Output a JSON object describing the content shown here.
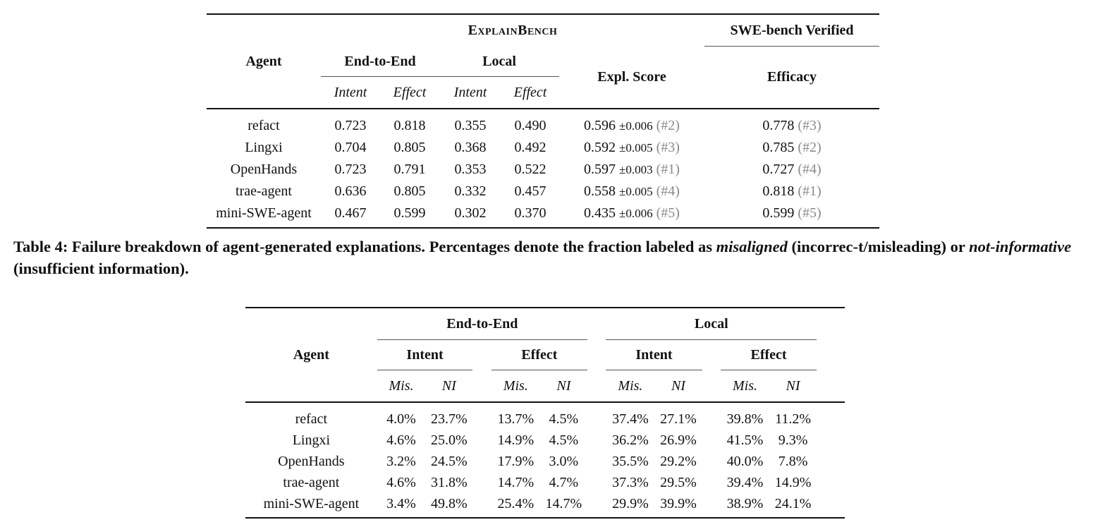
{
  "table1": {
    "header": {
      "agent": "Agent",
      "explainbench": "ExplainBench",
      "swebench": "SWE-bench Verified",
      "end_to_end": "End-to-End",
      "local": "Local",
      "expl_score": "Expl. Score",
      "efficacy": "Efficacy",
      "intent": "Intent",
      "effect": "Effect"
    },
    "rows": [
      {
        "agent": "refact",
        "e2e_intent": "0.723",
        "e2e_effect": "0.818",
        "local_intent": "0.355",
        "local_effect": "0.490",
        "score": "0.596",
        "score_pm": "±0.006",
        "score_rank": "(#2)",
        "efficacy": "0.778",
        "efficacy_rank": "(#3)"
      },
      {
        "agent": "Lingxi",
        "e2e_intent": "0.704",
        "e2e_effect": "0.805",
        "local_intent": "0.368",
        "local_effect": "0.492",
        "score": "0.592",
        "score_pm": "±0.005",
        "score_rank": "(#3)",
        "efficacy": "0.785",
        "efficacy_rank": "(#2)"
      },
      {
        "agent": "OpenHands",
        "e2e_intent": "0.723",
        "e2e_effect": "0.791",
        "local_intent": "0.353",
        "local_effect": "0.522",
        "score": "0.597",
        "score_pm": "±0.003",
        "score_rank": "(#1)",
        "efficacy": "0.727",
        "efficacy_rank": "(#4)"
      },
      {
        "agent": "trae-agent",
        "e2e_intent": "0.636",
        "e2e_effect": "0.805",
        "local_intent": "0.332",
        "local_effect": "0.457",
        "score": "0.558",
        "score_pm": "±0.005",
        "score_rank": "(#4)",
        "efficacy": "0.818",
        "efficacy_rank": "(#1)"
      },
      {
        "agent": "mini-SWE-agent",
        "e2e_intent": "0.467",
        "e2e_effect": "0.599",
        "local_intent": "0.302",
        "local_effect": "0.370",
        "score": "0.435",
        "score_pm": "±0.006",
        "score_rank": "(#5)",
        "efficacy": "0.599",
        "efficacy_rank": "(#5)"
      }
    ]
  },
  "caption": {
    "prefix": "Table 4: Failure breakdown of agent-generated explanations. Percentages denote the fraction labeled as ",
    "term1": "misaligned",
    "middle1": " (incorrec-t/misleading) or ",
    "term2": "not-informative",
    "suffix": " (insufficient information)."
  },
  "table2": {
    "header": {
      "agent": "Agent",
      "end_to_end": "End-to-End",
      "local": "Local",
      "intent": "Intent",
      "effect": "Effect",
      "mis": "Mis.",
      "ni": "NI"
    },
    "rows": [
      {
        "agent": "refact",
        "v": [
          "4.0%",
          "23.7%",
          "13.7%",
          "4.5%",
          "37.4%",
          "27.1%",
          "39.8%",
          "11.2%"
        ]
      },
      {
        "agent": "Lingxi",
        "v": [
          "4.6%",
          "25.0%",
          "14.9%",
          "4.5%",
          "36.2%",
          "26.9%",
          "41.5%",
          "9.3%"
        ]
      },
      {
        "agent": "OpenHands",
        "v": [
          "3.2%",
          "24.5%",
          "17.9%",
          "3.0%",
          "35.5%",
          "29.2%",
          "40.0%",
          "7.8%"
        ]
      },
      {
        "agent": "trae-agent",
        "v": [
          "4.6%",
          "31.8%",
          "14.7%",
          "4.7%",
          "37.3%",
          "29.5%",
          "39.4%",
          "14.9%"
        ]
      },
      {
        "agent": "mini-SWE-agent",
        "v": [
          "3.4%",
          "49.8%",
          "25.4%",
          "14.7%",
          "29.9%",
          "39.9%",
          "38.9%",
          "24.1%"
        ]
      }
    ]
  }
}
